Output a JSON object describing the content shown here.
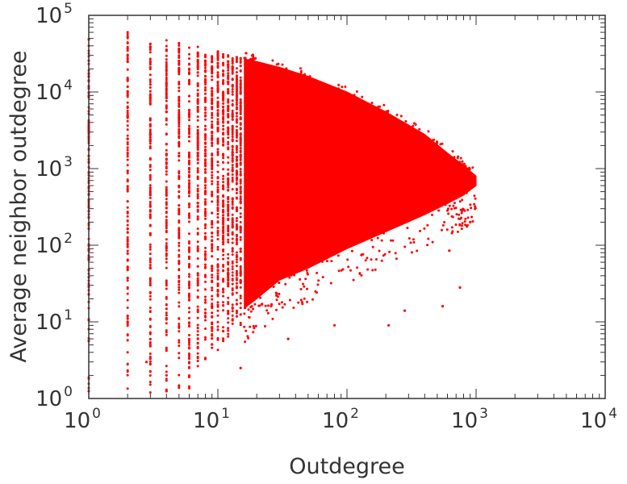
{
  "chart_data": {
    "type": "scatter",
    "title": "",
    "xlabel": "Outdegree",
    "ylabel": "Average neighbor outdegree",
    "x_scale": "log",
    "y_scale": "log",
    "xlim": [
      1,
      10000
    ],
    "ylim": [
      1,
      100000
    ],
    "grid": false,
    "legend": "none",
    "marker_color": "#ff0000",
    "x_ticks": [
      {
        "base": "10",
        "exp": "0",
        "value": 1
      },
      {
        "base": "10",
        "exp": "1",
        "value": 10
      },
      {
        "base": "10",
        "exp": "2",
        "value": 100
      },
      {
        "base": "10",
        "exp": "3",
        "value": 1000
      },
      {
        "base": "10",
        "exp": "4",
        "value": 10000
      }
    ],
    "y_ticks": [
      {
        "base": "10",
        "exp": "0",
        "value": 1
      },
      {
        "base": "10",
        "exp": "1",
        "value": 10
      },
      {
        "base": "10",
        "exp": "2",
        "value": 100
      },
      {
        "base": "10",
        "exp": "3",
        "value": 1000
      },
      {
        "base": "10",
        "exp": "4",
        "value": 10000
      },
      {
        "base": "10",
        "exp": "5",
        "value": 100000
      }
    ],
    "columns": [
      {
        "x": 1,
        "y_min": 1,
        "y_max": 50000
      },
      {
        "x": 2,
        "y_min": 1,
        "y_max": 65000
      },
      {
        "x": 3,
        "y_min": 1,
        "y_max": 45000
      },
      {
        "x": 4,
        "y_min": 1,
        "y_max": 48000
      },
      {
        "x": 5,
        "y_min": 1,
        "y_max": 47000
      },
      {
        "x": 6,
        "y_min": 1.3,
        "y_max": 45000
      },
      {
        "x": 7,
        "y_min": 2,
        "y_max": 40000
      },
      {
        "x": 8,
        "y_min": 3,
        "y_max": 38000
      },
      {
        "x": 9,
        "y_min": 4,
        "y_max": 36000
      },
      {
        "x": 10,
        "y_min": 4,
        "y_max": 34000
      },
      {
        "x": 11,
        "y_min": 5,
        "y_max": 32000
      },
      {
        "x": 12,
        "y_min": 6,
        "y_max": 31000
      },
      {
        "x": 13,
        "y_min": 7,
        "y_max": 30000
      },
      {
        "x": 14,
        "y_min": 8,
        "y_max": 29000
      },
      {
        "x": 15,
        "y_min": 9,
        "y_max": 28000
      }
    ],
    "cloud_envelope": {
      "x": [
        16,
        20,
        30,
        50,
        100,
        200,
        400,
        600,
        800,
        1000
      ],
      "upper": [
        27000,
        25000,
        21000,
        16000,
        10000,
        5500,
        2800,
        1600,
        1100,
        800
      ],
      "lower": [
        15,
        20,
        35,
        50,
        90,
        150,
        250,
        350,
        450,
        600
      ]
    },
    "outliers": [
      {
        "x": 2.8,
        "y": 3
      },
      {
        "x": 15,
        "y": 2.5
      },
      {
        "x": 35,
        "y": 6
      },
      {
        "x": 80,
        "y": 9
      },
      {
        "x": 210,
        "y": 9
      },
      {
        "x": 280,
        "y": 14
      },
      {
        "x": 550,
        "y": 16
      },
      {
        "x": 620,
        "y": 85
      },
      {
        "x": 750,
        "y": 28
      },
      {
        "x": 900,
        "y": 200
      }
    ]
  }
}
